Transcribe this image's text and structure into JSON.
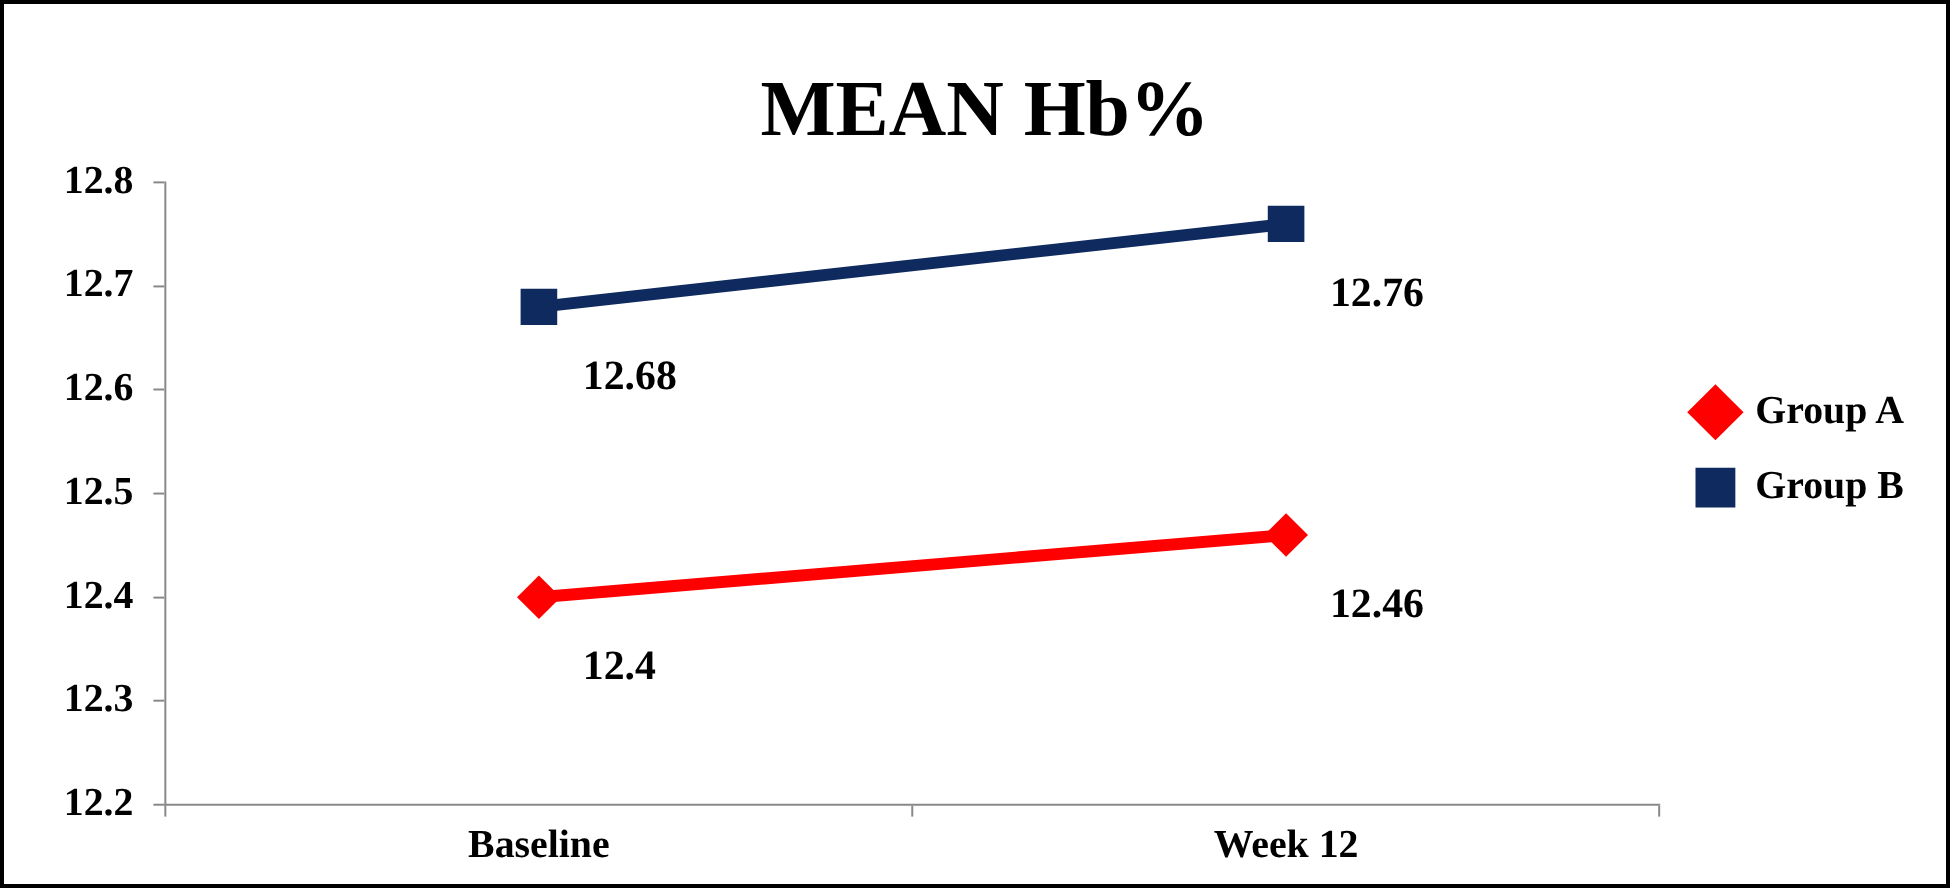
{
  "chart_data": {
    "type": "line",
    "title": "MEAN Hb%",
    "categories": [
      "Baseline",
      "Week 12"
    ],
    "series": [
      {
        "name": "Group A",
        "color": "#ff0000",
        "values": [
          12.4,
          12.46
        ],
        "marker": "diamond"
      },
      {
        "name": "Group B",
        "color": "#0e2a5e",
        "values": [
          12.68,
          12.76
        ],
        "marker": "square"
      }
    ],
    "ylim": [
      12.2,
      12.8
    ],
    "yticks": [
      12.2,
      12.3,
      12.4,
      12.5,
      12.6,
      12.7,
      12.8
    ],
    "grid": false,
    "legend": "right",
    "data_labels": true,
    "line_style": "solid"
  }
}
